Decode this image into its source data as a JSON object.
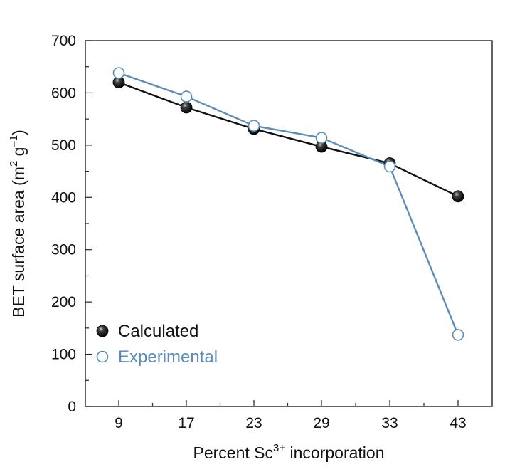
{
  "chart_data": {
    "type": "line",
    "categories": [
      "9",
      "17",
      "23",
      "29",
      "33",
      "43"
    ],
    "xlabel": {
      "prefix": "Percent Sc",
      "sup": "3+",
      "suffix": " incorporation"
    },
    "ylabel": {
      "prefix": "BET surface area (m",
      "sup1": "2",
      "mid": " g",
      "sup2": "–1",
      "suffix": ")"
    },
    "ylim": [
      0,
      700
    ],
    "yticks": [
      "0",
      "100",
      "200",
      "300",
      "400",
      "500",
      "600",
      "700"
    ],
    "grid": false,
    "legend_position": "bottom-left",
    "series": [
      {
        "name": "Calculated",
        "values": [
          620,
          572,
          531,
          497,
          465,
          402
        ],
        "color": "#111111",
        "marker": "filled-circle"
      },
      {
        "name": "Experimental",
        "values": [
          638,
          593,
          537,
          514,
          459,
          137
        ],
        "color": "#5b8db8",
        "marker": "open-circle"
      }
    ]
  }
}
